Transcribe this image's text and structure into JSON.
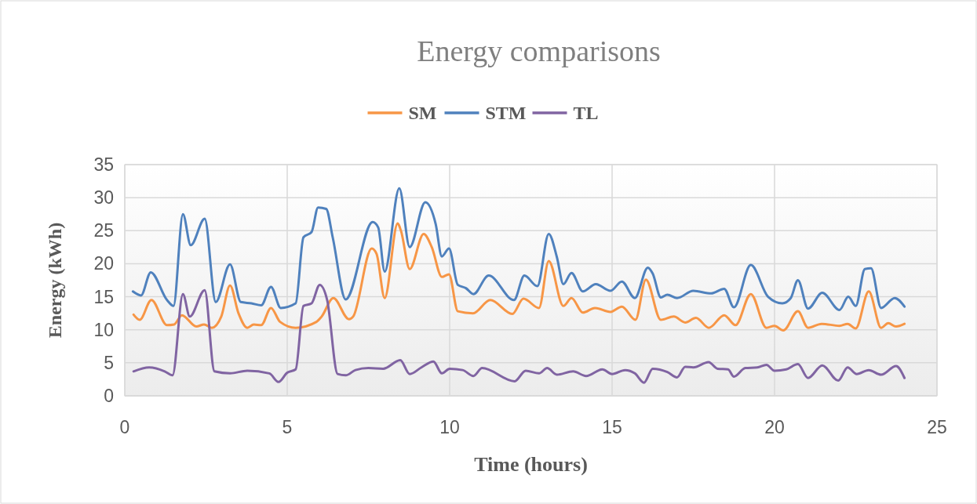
{
  "chart_data": {
    "type": "line",
    "title": "Energy comparisons",
    "xlabel": "Time (hours)",
    "ylabel": "Energy (kWh)",
    "xlim": [
      0,
      25
    ],
    "xticks": [
      0,
      5,
      10,
      15,
      20,
      25
    ],
    "ylim": [
      0,
      35
    ],
    "yticks": [
      0,
      5,
      10,
      15,
      20,
      25,
      30,
      35
    ],
    "grid": true,
    "legend": "top",
    "marker": "none",
    "line_style": "solid",
    "series": [
      {
        "name": "SM",
        "color": "#f79646",
        "x": [
          0.27,
          0.46,
          0.82,
          1.3,
          1.52,
          1.76,
          2.2,
          2.44,
          2.68,
          2.97,
          3.24,
          3.5,
          3.77,
          3.97,
          4.2,
          4.5,
          4.78,
          5.26,
          5.9,
          6.06,
          6.42,
          6.9,
          7.03,
          7.6,
          7.75,
          8.0,
          8.4,
          8.5,
          8.77,
          9.2,
          9.45,
          9.76,
          9.98,
          10.25,
          10.72,
          11.25,
          11.93,
          12.27,
          12.75,
          13.05,
          13.5,
          13.75,
          14.1,
          14.47,
          14.95,
          15.3,
          15.72,
          16.04,
          16.5,
          16.9,
          17.25,
          17.58,
          17.98,
          18.45,
          18.8,
          19.27,
          19.75,
          20.0,
          20.27,
          20.72,
          21.03,
          21.45,
          22.0,
          22.25,
          22.5,
          22.9,
          23.28,
          23.5,
          23.74,
          24.0
        ],
        "values": [
          12.3,
          11.5,
          14.5,
          10.7,
          10.8,
          12.2,
          10.5,
          10.8,
          10.3,
          12,
          16.7,
          12.5,
          10.3,
          10.8,
          10.7,
          13.3,
          11.2,
          10.3,
          11.2,
          12,
          14.8,
          11.6,
          12,
          22.3,
          21.5,
          14.8,
          26.1,
          25,
          19.2,
          24.5,
          22.5,
          18,
          18.4,
          12.8,
          12.5,
          14.5,
          12.4,
          14.7,
          13.3,
          20.4,
          13.6,
          14.8,
          12.6,
          13.3,
          12.7,
          13.5,
          11.5,
          17.6,
          11.5,
          12,
          11.1,
          11.8,
          10.3,
          12.2,
          10.7,
          15.4,
          10.3,
          10.6,
          9.9,
          12.8,
          10.3,
          10.9,
          10.6,
          10.9,
          10.2,
          15.8,
          10.3,
          11,
          10.5,
          10.9
        ]
      },
      {
        "name": "STM",
        "color": "#4f81bd",
        "x": [
          0.25,
          0.5,
          0.8,
          1.3,
          1.5,
          1.79,
          2.03,
          2.46,
          2.8,
          3.24,
          3.57,
          3.9,
          4.2,
          4.5,
          4.8,
          5.26,
          5.5,
          5.75,
          5.95,
          6.2,
          6.4,
          6.8,
          7.63,
          7.8,
          8.0,
          8.45,
          8.77,
          9.25,
          9.57,
          9.76,
          9.98,
          10.25,
          10.5,
          10.73,
          11.2,
          11.98,
          12.3,
          12.7,
          13.05,
          13.3,
          13.5,
          13.75,
          14.1,
          14.5,
          14.95,
          15.3,
          15.7,
          16.1,
          16.25,
          16.5,
          16.7,
          17.0,
          17.5,
          18.05,
          18.45,
          18.75,
          19.27,
          19.8,
          20.24,
          20.5,
          20.72,
          21.03,
          21.47,
          22.0,
          22.27,
          22.5,
          22.78,
          22.97,
          23.28,
          23.7,
          24.0
        ],
        "values": [
          15.8,
          15.2,
          18.7,
          14.5,
          13.6,
          27.5,
          22.8,
          26.8,
          14.2,
          19.9,
          14.2,
          14,
          13.7,
          16.5,
          13.3,
          14,
          24,
          24.8,
          28.5,
          28.3,
          24,
          14.6,
          26.3,
          25.5,
          18.8,
          31.4,
          22.5,
          29.3,
          26,
          21.1,
          22.3,
          16.8,
          16.3,
          15.4,
          18.2,
          14.5,
          18.2,
          16.6,
          24.5,
          21,
          16.9,
          18.6,
          15.8,
          16.9,
          15.9,
          17.3,
          14.8,
          19.4,
          18.5,
          14.9,
          15.3,
          14.8,
          15.9,
          15.5,
          16.2,
          13.4,
          19.8,
          15,
          14,
          14.8,
          17.5,
          13.2,
          15.6,
          13,
          15,
          13.6,
          19.2,
          19.3,
          13.3,
          14.8,
          13.5
        ]
      },
      {
        "name": "TL",
        "color": "#8064a2",
        "x": [
          0.27,
          0.75,
          1.23,
          1.47,
          1.79,
          2.0,
          2.46,
          2.76,
          3.24,
          3.77,
          4.45,
          4.73,
          5.0,
          5.26,
          5.5,
          5.75,
          6.0,
          6.23,
          6.55,
          6.8,
          7.1,
          7.5,
          7.95,
          8.48,
          8.77,
          9.13,
          9.5,
          9.76,
          10.0,
          10.4,
          10.73,
          11.0,
          12.0,
          12.34,
          12.75,
          13.0,
          13.3,
          13.8,
          14.2,
          14.7,
          15.0,
          15.4,
          15.7,
          15.98,
          16.25,
          16.7,
          17.0,
          17.25,
          17.5,
          17.97,
          18.25,
          18.57,
          18.75,
          19.1,
          19.47,
          19.75,
          20.0,
          20.36,
          20.72,
          21.03,
          21.47,
          21.96,
          22.25,
          22.53,
          22.9,
          23.28,
          23.74,
          24.0
        ],
        "values": [
          3.7,
          4.3,
          3.7,
          3.1,
          15.4,
          12,
          16,
          3.7,
          3.4,
          3.8,
          3.4,
          2.1,
          3.5,
          4,
          13.6,
          14,
          16.8,
          14.5,
          3.3,
          3.1,
          3.9,
          4.2,
          4.1,
          5.4,
          3.3,
          4.3,
          5.2,
          3.4,
          4.1,
          3.9,
          3,
          4.2,
          2.2,
          3.8,
          3.4,
          4.2,
          3.2,
          3.7,
          3,
          4,
          3.3,
          3.9,
          3.4,
          2,
          4.1,
          3.6,
          2.8,
          4.4,
          4.3,
          5.1,
          4.1,
          4,
          2.9,
          4.2,
          4.3,
          4.7,
          3.8,
          4,
          4.8,
          2.7,
          4.6,
          2.3,
          4.3,
          3.3,
          3.9,
          3.2,
          4.5,
          2.7
        ]
      }
    ]
  }
}
